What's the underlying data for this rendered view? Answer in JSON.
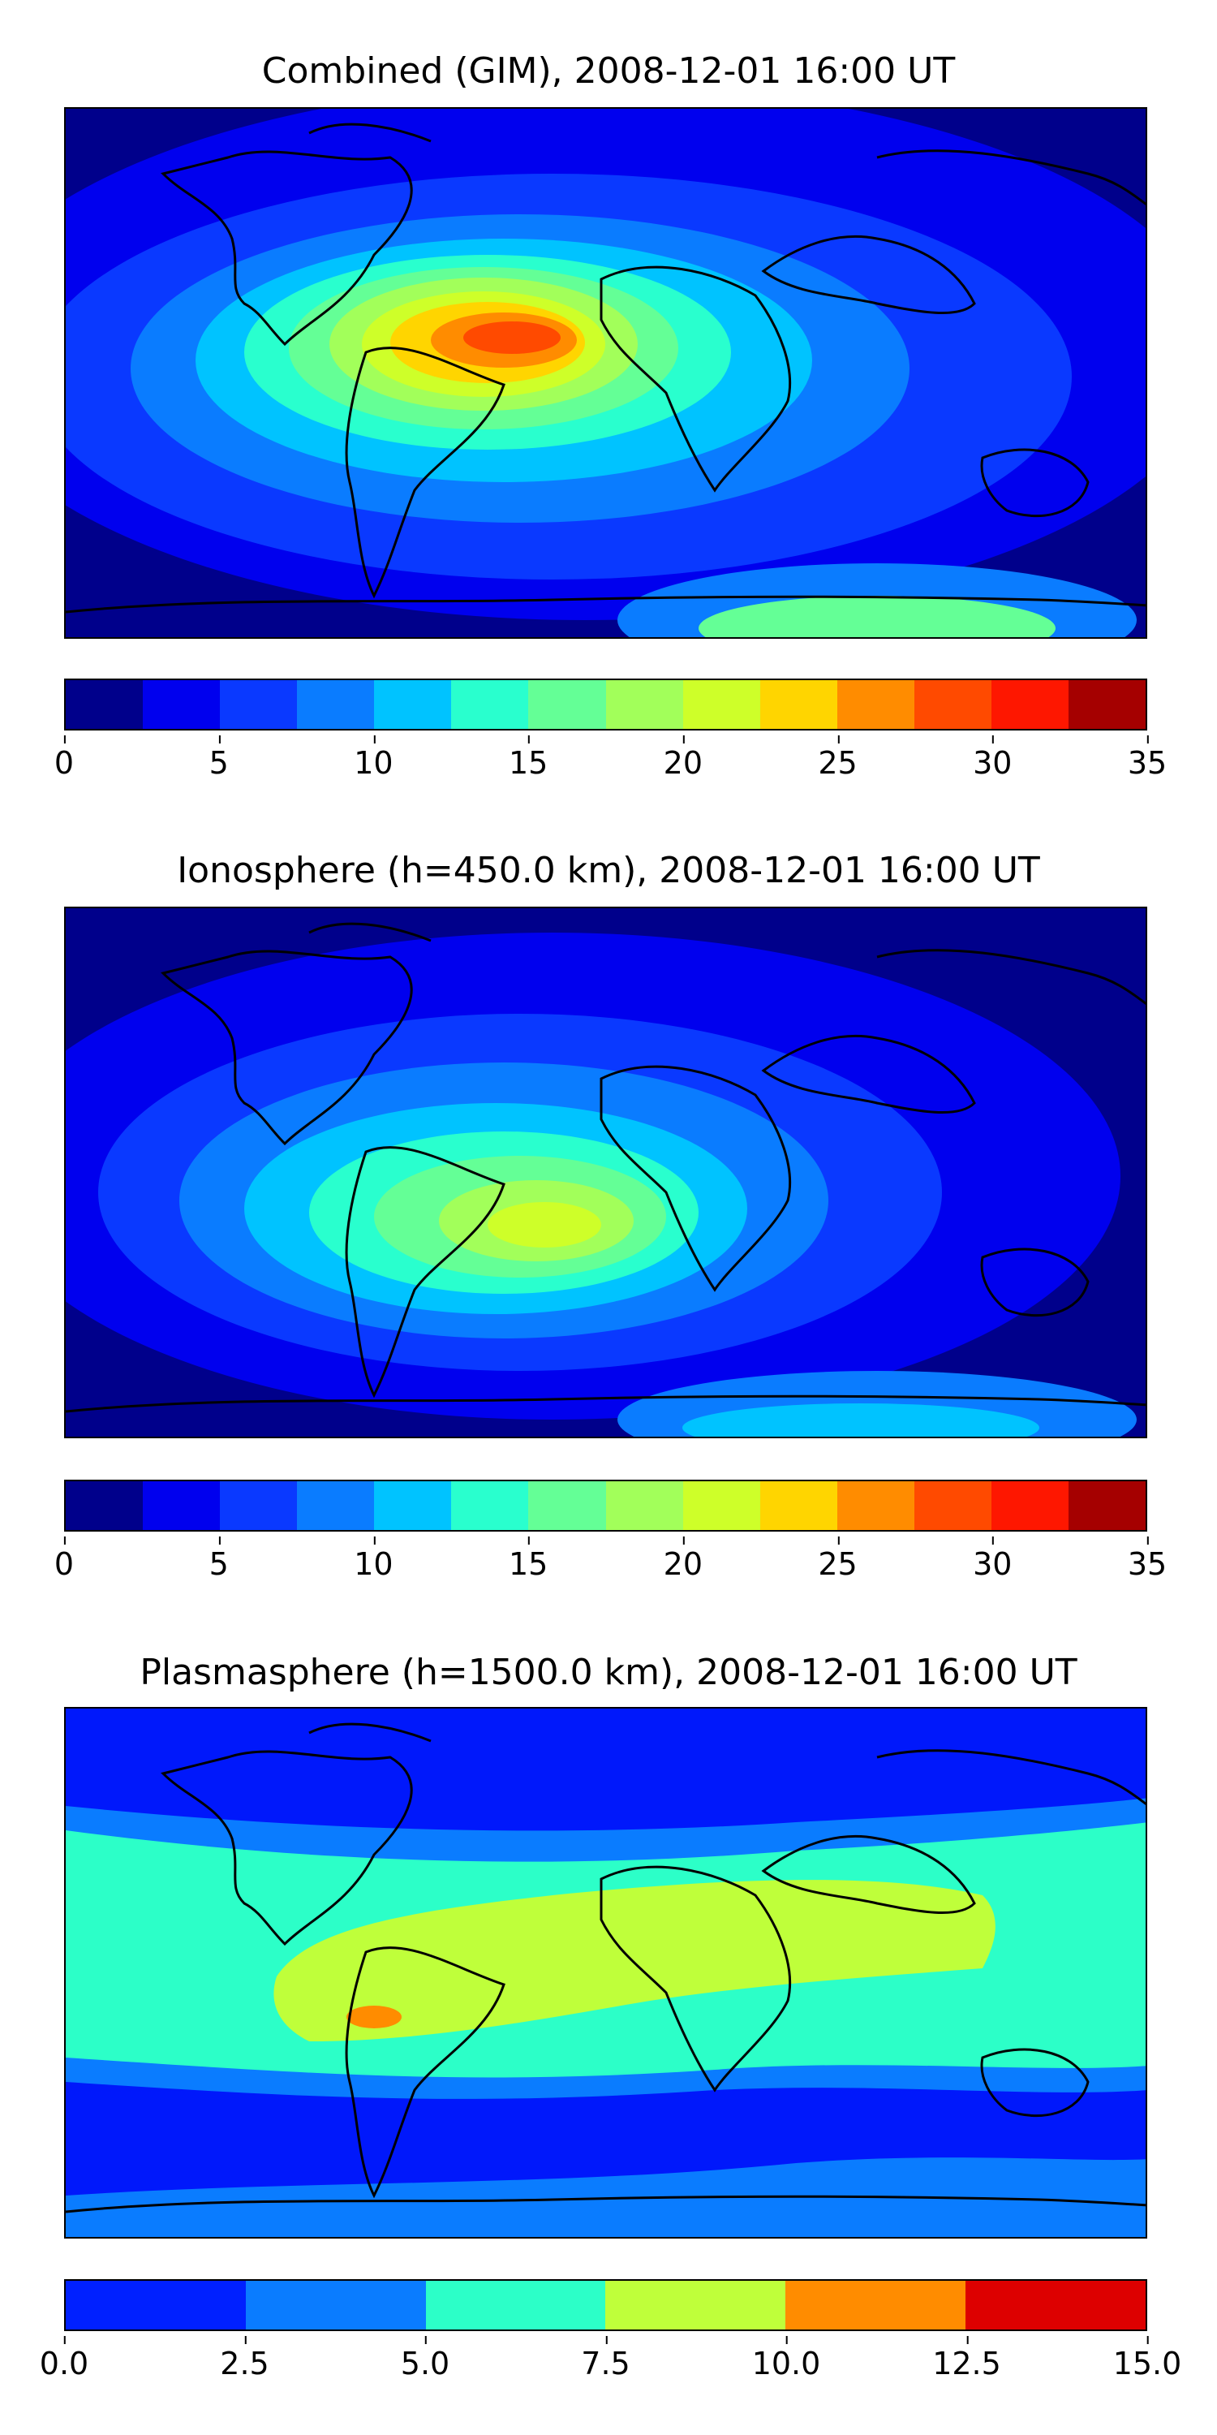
{
  "panels": [
    {
      "title": "Combined (GIM), 2008-12-01 16:00 UT",
      "colorbar": {
        "colors": [
          "#00008b",
          "#0000ee",
          "#0a39ff",
          "#0a7cff",
          "#00c3ff",
          "#29ffce",
          "#64ff96",
          "#a2ff5a",
          "#ceff29",
          "#ffd500",
          "#ff8c00",
          "#ff4a00",
          "#fe1700",
          "#a50000"
        ],
        "ticks": [
          "0",
          "5",
          "10",
          "15",
          "20",
          "25",
          "30",
          "35"
        ]
      }
    },
    {
      "title": "Ionosphere  (h=450.0 km), 2008-12-01 16:00 UT",
      "colorbar": {
        "colors": [
          "#00008b",
          "#0000ee",
          "#0a39ff",
          "#0a7cff",
          "#00c3ff",
          "#29ffce",
          "#64ff96",
          "#a2ff5a",
          "#ceff29",
          "#ffd500",
          "#ff8c00",
          "#ff4a00",
          "#fe1700",
          "#a50000"
        ],
        "ticks": [
          "0",
          "5",
          "10",
          "15",
          "20",
          "25",
          "30",
          "35"
        ]
      }
    },
    {
      "title": "Plasmasphere (h=1500.0 km), 2008-12-01 16:00 UT",
      "colorbar": {
        "colors": [
          "#0020ff",
          "#0a7cff",
          "#2cffc8",
          "#bfff3a",
          "#ff8c00",
          "#dd0000"
        ],
        "ticks": [
          "0.0",
          "2.5",
          "5.0",
          "7.5",
          "10.0",
          "12.5",
          "15.0"
        ]
      }
    }
  ]
}
